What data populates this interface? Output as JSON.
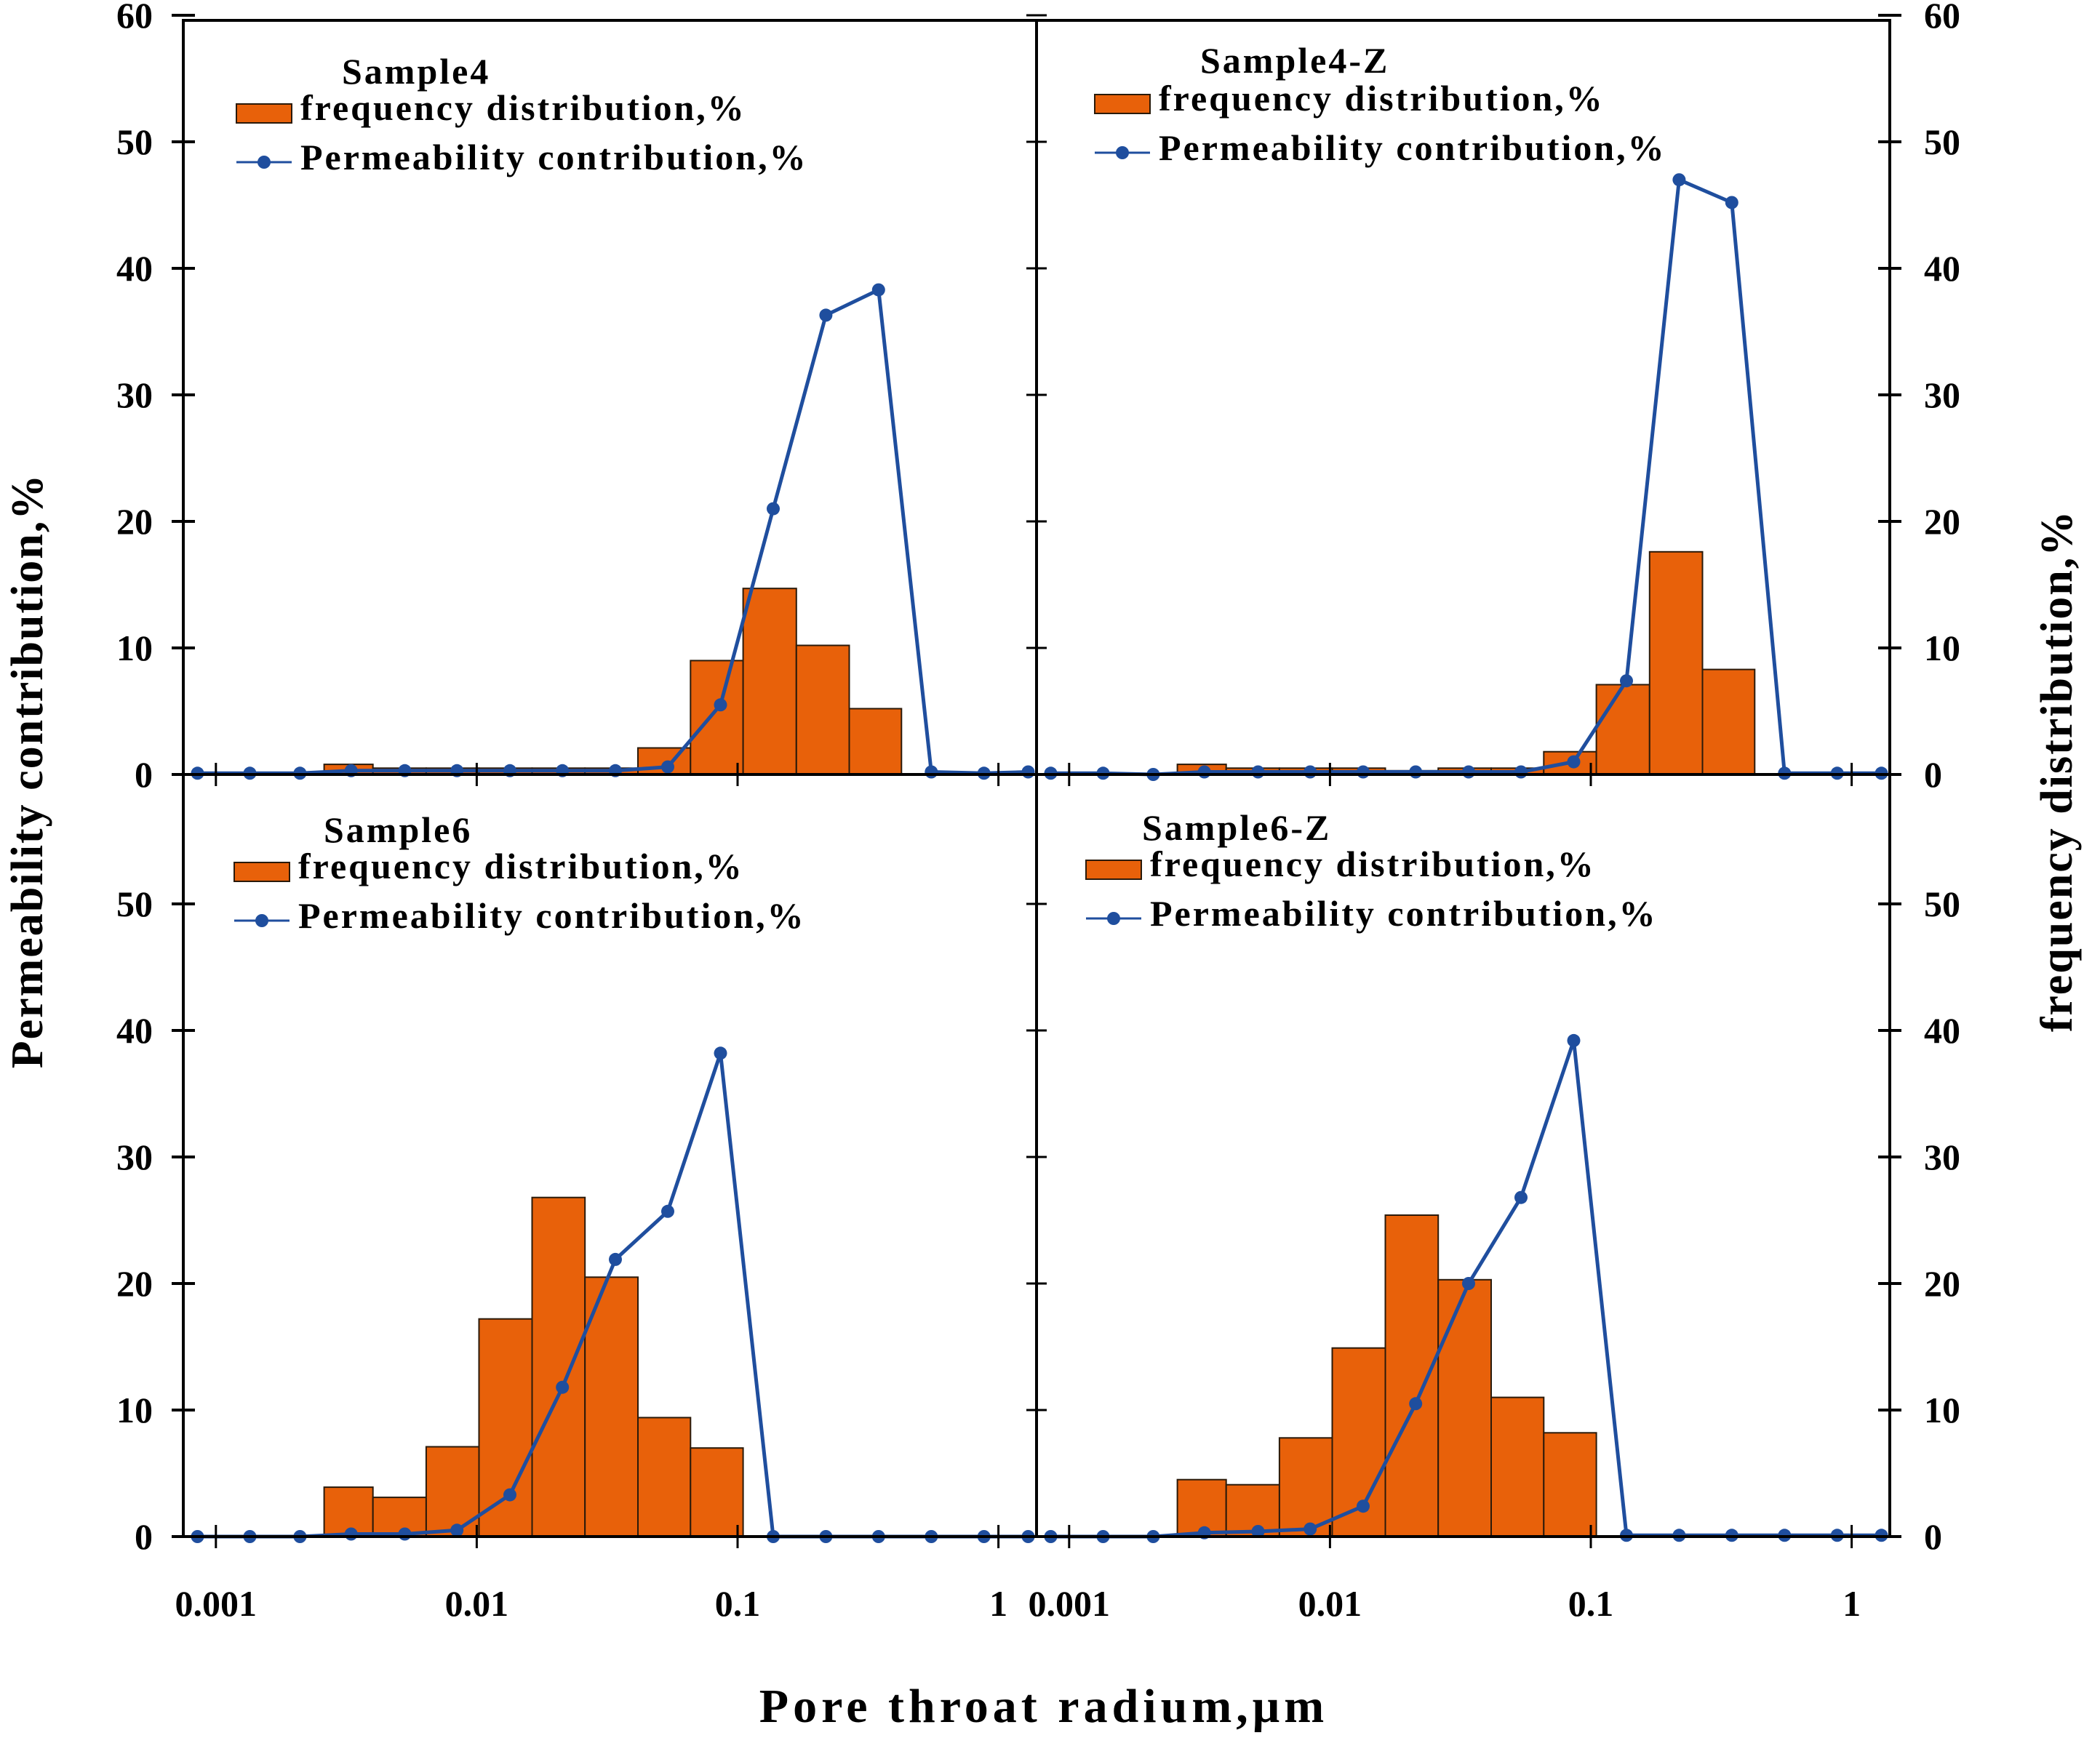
{
  "figure": {
    "xlabel": "Pore throat radium,μm",
    "ylabel_left": "Permeability contribution,%",
    "ylabel_right": "frequency distribution,%",
    "left_ticks_top": [
      "0",
      "10",
      "20",
      "30",
      "40",
      "50",
      "60"
    ],
    "left_ticks_bottom": [
      "0",
      "10",
      "20",
      "30",
      "40",
      "50"
    ],
    "right_ticks_top": [
      "0",
      "10",
      "20",
      "30",
      "40",
      "50",
      "60"
    ],
    "right_ticks_bottom": [
      "0",
      "10",
      "20",
      "30",
      "40",
      "50"
    ],
    "x_ticks": [
      "0.001",
      "0.01",
      "0.1",
      "1"
    ],
    "colors": {
      "bar": "#E8610A",
      "bar_edge": "#2a1a0a",
      "line": "#1F4E9E",
      "marker": "#1F4E9E",
      "axis": "#000000"
    }
  },
  "chart_data": [
    {
      "type": "bar",
      "title": "Sample4",
      "legend": [
        "frequency distribution,%",
        "Permeability contribution,%"
      ],
      "xlabel": "Pore throat radium,μm",
      "ylabel": "Permeability contribution,%",
      "xscale": "log",
      "xlim": [
        0.00075,
        1.4
      ],
      "ylim": [
        0,
        60
      ],
      "bars": [
        {
          "x0": 0.0026,
          "x1": 0.004,
          "value": 0.8
        },
        {
          "x0": 0.004,
          "x1": 0.0064,
          "value": 0.5
        },
        {
          "x0": 0.0064,
          "x1": 0.0102,
          "value": 0.5
        },
        {
          "x0": 0.0102,
          "x1": 0.0163,
          "value": 0.5
        },
        {
          "x0": 0.0163,
          "x1": 0.026,
          "value": 0.5
        },
        {
          "x0": 0.026,
          "x1": 0.0415,
          "value": 0.5
        },
        {
          "x0": 0.0415,
          "x1": 0.066,
          "value": 2.1
        },
        {
          "x0": 0.066,
          "x1": 0.105,
          "value": 9.0
        },
        {
          "x0": 0.105,
          "x1": 0.168,
          "value": 14.7
        },
        {
          "x0": 0.168,
          "x1": 0.268,
          "value": 10.2
        },
        {
          "x0": 0.268,
          "x1": 0.425,
          "value": 5.2
        }
      ],
      "series": [
        {
          "name": "Permeability contribution,%",
          "x": [
            0.00085,
            0.00135,
            0.0021,
            0.0033,
            0.0053,
            0.0084,
            0.0134,
            0.0213,
            0.034,
            0.054,
            0.086,
            0.137,
            0.218,
            0.347,
            0.553,
            0.88,
            1.3
          ],
          "values": [
            0.1,
            0.1,
            0.1,
            0.3,
            0.3,
            0.3,
            0.3,
            0.3,
            0.3,
            0.6,
            5.5,
            21.0,
            36.3,
            38.3,
            0.2,
            0.1,
            0.2
          ]
        }
      ]
    },
    {
      "type": "bar",
      "title": "Sample4-Z",
      "legend": [
        "frequency distribution,%",
        "Permeability contribution,%"
      ],
      "xlabel": "Pore throat radium,μm",
      "ylabel": "frequency distribution,%",
      "xscale": "log",
      "xlim": [
        0.00075,
        1.4
      ],
      "ylim": [
        0,
        60
      ],
      "bars": [
        {
          "x0": 0.0026,
          "x1": 0.004,
          "value": 0.8
        },
        {
          "x0": 0.004,
          "x1": 0.0064,
          "value": 0.5
        },
        {
          "x0": 0.0064,
          "x1": 0.0102,
          "value": 0.5
        },
        {
          "x0": 0.0102,
          "x1": 0.0163,
          "value": 0.5
        },
        {
          "x0": 0.0163,
          "x1": 0.026,
          "value": 0.3
        },
        {
          "x0": 0.026,
          "x1": 0.0415,
          "value": 0.5
        },
        {
          "x0": 0.0415,
          "x1": 0.066,
          "value": 0.5
        },
        {
          "x0": 0.066,
          "x1": 0.105,
          "value": 1.8
        },
        {
          "x0": 0.105,
          "x1": 0.168,
          "value": 7.1
        },
        {
          "x0": 0.168,
          "x1": 0.268,
          "value": 17.6
        },
        {
          "x0": 0.268,
          "x1": 0.425,
          "value": 8.3
        }
      ],
      "series": [
        {
          "name": "Permeability contribution,%",
          "x": [
            0.00085,
            0.00135,
            0.0021,
            0.0033,
            0.0053,
            0.0084,
            0.0134,
            0.0213,
            0.034,
            0.054,
            0.086,
            0.137,
            0.218,
            0.347,
            0.553,
            0.88,
            1.3
          ],
          "values": [
            0.1,
            0.1,
            0.0,
            0.2,
            0.2,
            0.2,
            0.2,
            0.2,
            0.2,
            0.2,
            1.0,
            7.4,
            47.0,
            45.2,
            0.1,
            0.1,
            0.1
          ]
        }
      ]
    },
    {
      "type": "bar",
      "title": "Sample6",
      "legend": [
        "frequency distribution,%",
        "Permeability contribution,%"
      ],
      "xlabel": "Pore throat radium,μm",
      "ylabel": "Permeability contribution,%",
      "xscale": "log",
      "xlim": [
        0.00075,
        1.4
      ],
      "ylim": [
        0,
        60
      ],
      "bars": [
        {
          "x0": 0.0026,
          "x1": 0.004,
          "value": 3.9
        },
        {
          "x0": 0.004,
          "x1": 0.0064,
          "value": 3.1
        },
        {
          "x0": 0.0064,
          "x1": 0.0102,
          "value": 7.1
        },
        {
          "x0": 0.0102,
          "x1": 0.0163,
          "value": 17.2
        },
        {
          "x0": 0.0163,
          "x1": 0.026,
          "value": 26.8
        },
        {
          "x0": 0.026,
          "x1": 0.0415,
          "value": 20.5
        },
        {
          "x0": 0.0415,
          "x1": 0.066,
          "value": 9.4
        },
        {
          "x0": 0.066,
          "x1": 0.105,
          "value": 7.0
        }
      ],
      "series": [
        {
          "name": "Permeability contribution,%",
          "x": [
            0.00085,
            0.00135,
            0.0021,
            0.0033,
            0.0053,
            0.0084,
            0.0134,
            0.0213,
            0.034,
            0.054,
            0.086,
            0.137,
            0.218,
            0.347,
            0.553,
            0.88,
            1.3
          ],
          "values": [
            0.0,
            0.0,
            0.0,
            0.2,
            0.2,
            0.5,
            3.3,
            11.8,
            21.9,
            25.7,
            38.2,
            0.0,
            0.0,
            0.0,
            0.0,
            0.0,
            0.0
          ]
        }
      ]
    },
    {
      "type": "bar",
      "title": "Sample6-Z",
      "legend": [
        "frequency distribution,%",
        "Permeability contribution,%"
      ],
      "xlabel": "Pore throat radium,μm",
      "ylabel": "frequency distribution,%",
      "xscale": "log",
      "xlim": [
        0.00075,
        1.4
      ],
      "ylim": [
        0,
        60
      ],
      "bars": [
        {
          "x0": 0.0026,
          "x1": 0.004,
          "value": 4.5
        },
        {
          "x0": 0.004,
          "x1": 0.0064,
          "value": 4.1
        },
        {
          "x0": 0.0064,
          "x1": 0.0102,
          "value": 7.8
        },
        {
          "x0": 0.0102,
          "x1": 0.0163,
          "value": 14.9
        },
        {
          "x0": 0.0163,
          "x1": 0.026,
          "value": 25.4
        },
        {
          "x0": 0.026,
          "x1": 0.0415,
          "value": 20.3
        },
        {
          "x0": 0.0415,
          "x1": 0.066,
          "value": 11.0
        },
        {
          "x0": 0.066,
          "x1": 0.105,
          "value": 8.2
        }
      ],
      "series": [
        {
          "name": "Permeability contribution,%",
          "x": [
            0.00085,
            0.00135,
            0.0021,
            0.0033,
            0.0053,
            0.0084,
            0.0134,
            0.0213,
            0.034,
            0.054,
            0.086,
            0.137,
            0.218,
            0.347,
            0.553,
            0.88,
            1.3
          ],
          "values": [
            0.0,
            0.0,
            0.0,
            0.3,
            0.4,
            0.6,
            2.4,
            10.5,
            20.0,
            26.8,
            39.2,
            0.1,
            0.1,
            0.1,
            0.1,
            0.1,
            0.1
          ]
        }
      ]
    }
  ]
}
